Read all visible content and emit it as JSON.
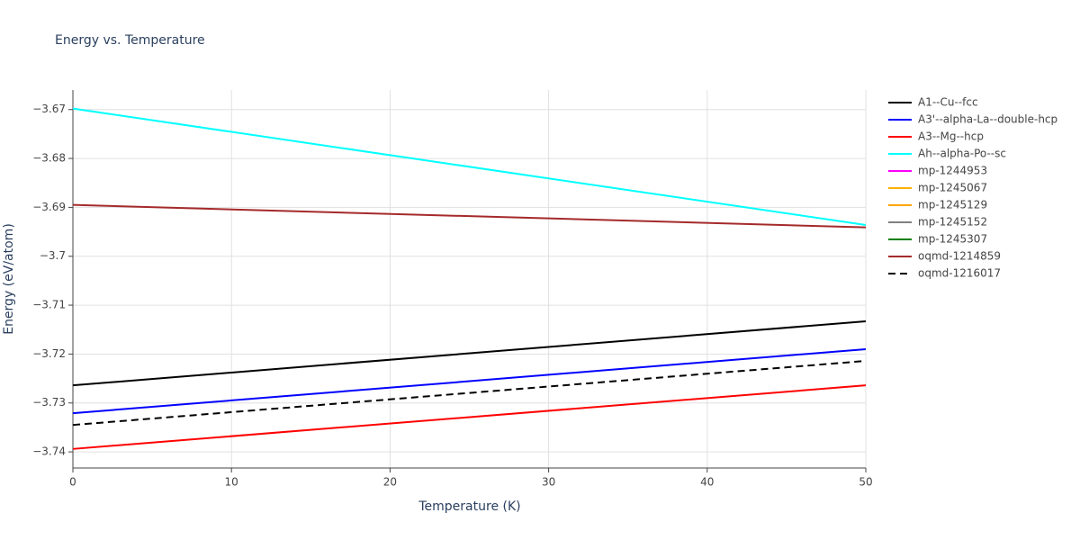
{
  "chart_data": {
    "type": "line",
    "title": "Energy vs. Temperature",
    "x_label": "Temperature (K)",
    "y_label": "Energy (eV/atom)",
    "x": [
      0,
      50
    ],
    "series": [
      {
        "name": "A1--Cu--fcc",
        "color": "#000000",
        "values": [
          -3.7264,
          -3.7133
        ]
      },
      {
        "name": "A3'--alpha-La--double-hcp",
        "color": "#0000ff",
        "values": [
          -3.7321,
          -3.719
        ]
      },
      {
        "name": "A3--Mg--hcp",
        "color": "#ff0000",
        "values": [
          -3.7394,
          -3.7264
        ]
      },
      {
        "name": "Ah--alpha-Po--sc",
        "color": "#00ffff",
        "values": [
          -3.6698,
          -3.6936
        ]
      },
      {
        "name": "mp-1244953",
        "color": "#ff00ff",
        "values": [
          null,
          null
        ]
      },
      {
        "name": "mp-1245067",
        "color": "#ffb000",
        "values": [
          null,
          null
        ]
      },
      {
        "name": "mp-1245129",
        "color": "#ffa500",
        "values": [
          null,
          null
        ]
      },
      {
        "name": "mp-1245152",
        "color": "#808080",
        "values": [
          null,
          null
        ]
      },
      {
        "name": "mp-1245307",
        "color": "#008000",
        "values": [
          null,
          null
        ]
      },
      {
        "name": "oqmd-1214859",
        "color": "#a52a2a",
        "values": [
          -3.6895,
          -3.6941
        ]
      },
      {
        "name": "oqmd-1216017",
        "color": "#000000",
        "dash": true,
        "values": [
          -3.7345,
          -3.7214
        ]
      }
    ],
    "xlim": [
      0,
      50
    ],
    "xticks": [
      0,
      10,
      20,
      30,
      40,
      50
    ],
    "ylim": [
      -3.7433,
      -3.666
    ],
    "yticks": [
      {
        "value": -3.74,
        "label": "−3.74"
      },
      {
        "value": -3.73,
        "label": "−3.73"
      },
      {
        "value": -3.72,
        "label": "−3.72"
      },
      {
        "value": -3.71,
        "label": "−3.71"
      },
      {
        "value": -3.7,
        "label": "−3.7"
      },
      {
        "value": -3.69,
        "label": "−3.69"
      },
      {
        "value": -3.68,
        "label": "−3.68"
      },
      {
        "value": -3.67,
        "label": "−3.67"
      }
    ],
    "grid": true,
    "legend": "right"
  }
}
